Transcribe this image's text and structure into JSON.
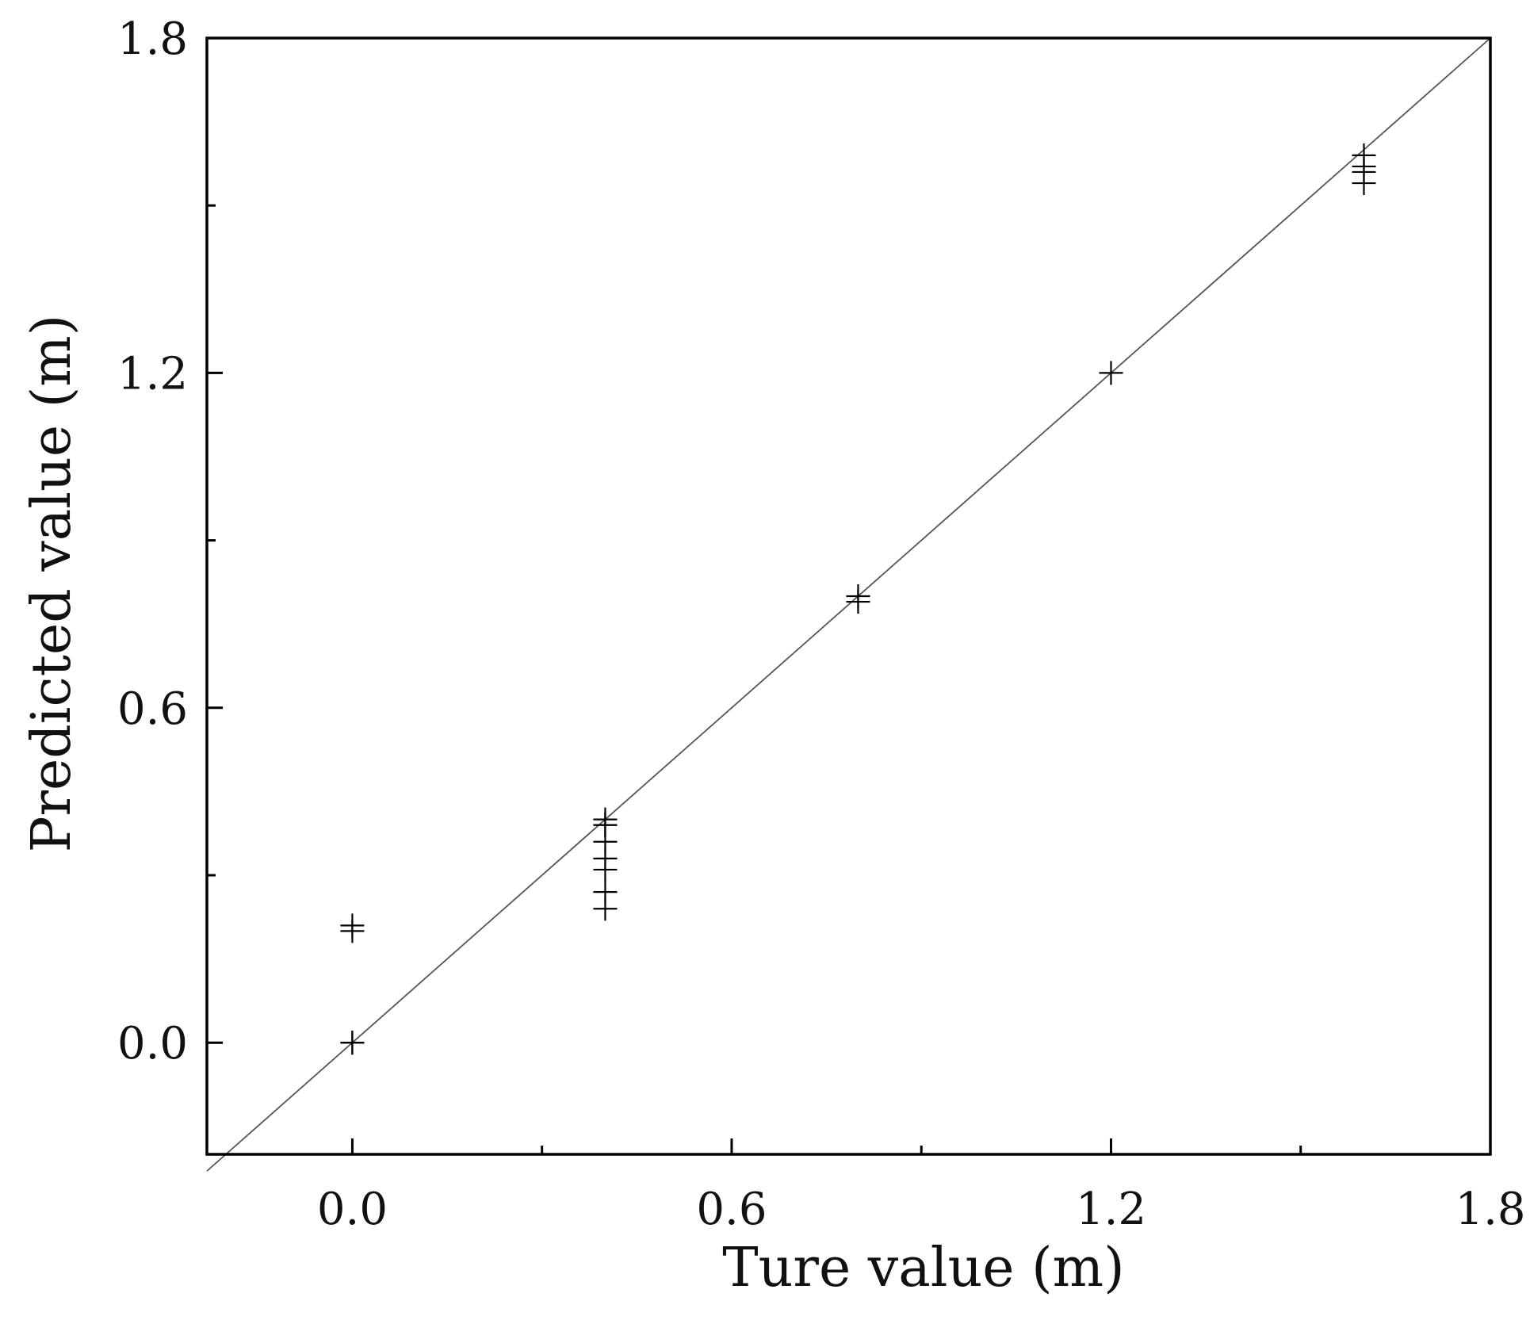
{
  "chart_data": {
    "type": "scatter",
    "title": "",
    "xlabel": "Ture value (m)",
    "ylabel": "Predicted value (m)",
    "xlim": [
      -0.23,
      1.8
    ],
    "ylim": [
      -0.2,
      1.8
    ],
    "x_major_ticks": [
      0.0,
      0.6,
      1.2,
      1.8
    ],
    "x_minor_ticks": [
      0.3,
      0.9,
      1.5
    ],
    "x_tick_labels": [
      "0.0",
      "0.6",
      "1.2",
      "1.8"
    ],
    "y_major_ticks": [
      0.0,
      0.6,
      1.2,
      1.8
    ],
    "y_minor_ticks": [
      0.3,
      0.9,
      1.5
    ],
    "y_tick_labels": [
      "0.0",
      "0.6",
      "1.2",
      "1.8"
    ],
    "grid": false,
    "legend": "none",
    "marker": "plus",
    "colors": {
      "points": "#000000",
      "reference_line": "#555555",
      "frame": "#000000"
    },
    "reference_line": {
      "from": [
        -0.23,
        -0.23
      ],
      "to": [
        1.8,
        1.8
      ]
    },
    "series": [
      {
        "points": [
          {
            "x": 0.0,
            "y": 0.2
          },
          {
            "x": 0.0,
            "y": 0.21
          },
          {
            "x": 0.0,
            "y": 0.0
          },
          {
            "x": 0.0,
            "y": 0.0
          },
          {
            "x": 0.0,
            "y": 0.0
          },
          {
            "x": 0.4,
            "y": 0.4
          },
          {
            "x": 0.4,
            "y": 0.39
          },
          {
            "x": 0.4,
            "y": 0.39
          },
          {
            "x": 0.4,
            "y": 0.36
          },
          {
            "x": 0.4,
            "y": 0.33
          },
          {
            "x": 0.4,
            "y": 0.31
          },
          {
            "x": 0.4,
            "y": 0.27
          },
          {
            "x": 0.4,
            "y": 0.24
          },
          {
            "x": 0.8,
            "y": 0.8
          },
          {
            "x": 0.8,
            "y": 0.79
          },
          {
            "x": 1.2,
            "y": 1.2
          },
          {
            "x": 1.6,
            "y": 1.59
          },
          {
            "x": 1.6,
            "y": 1.57
          },
          {
            "x": 1.6,
            "y": 1.56
          },
          {
            "x": 1.6,
            "y": 1.54
          }
        ]
      }
    ]
  }
}
